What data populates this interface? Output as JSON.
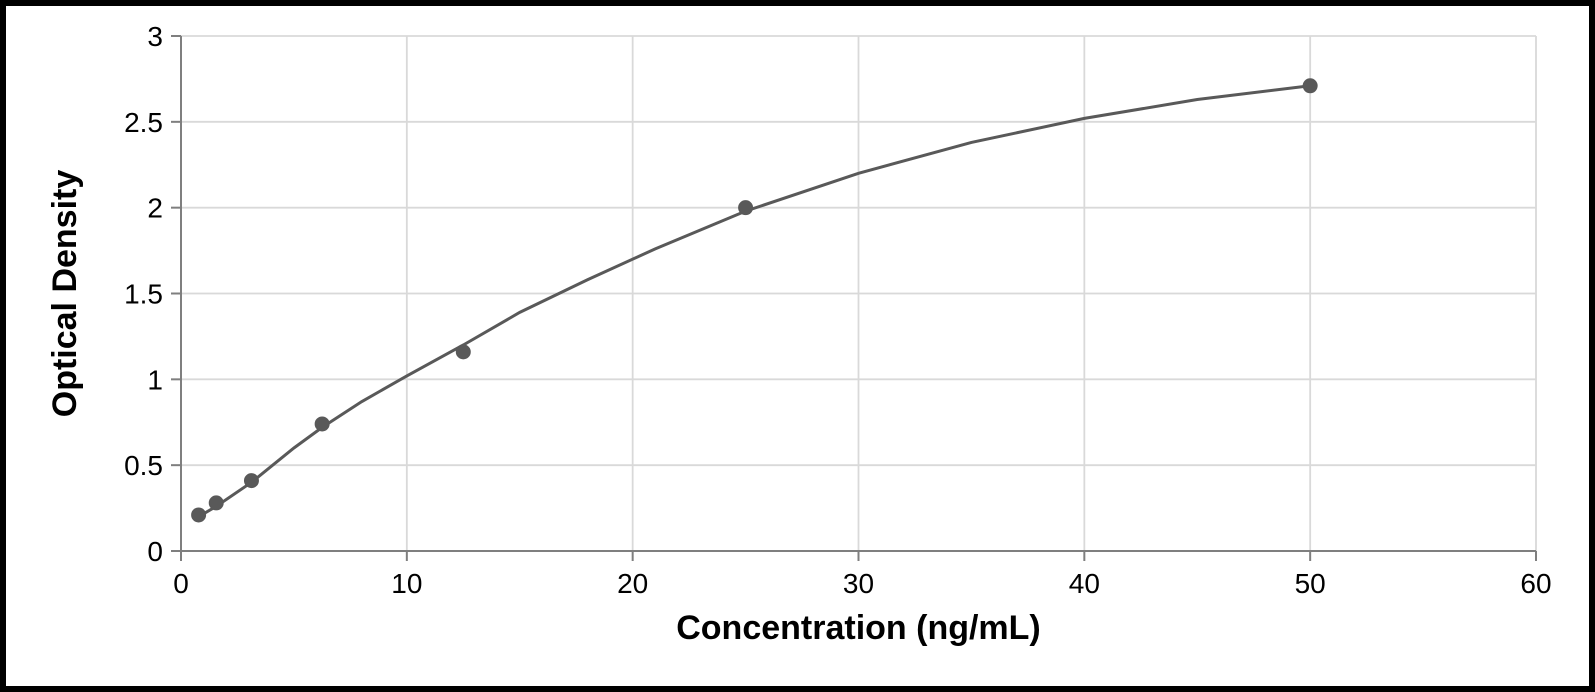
{
  "chart": {
    "type": "scatter-with-curve",
    "xlabel": "Concentration (ng/mL)",
    "ylabel": "Optical Density",
    "label_fontsize": 34,
    "tick_fontsize": 28,
    "xlim": [
      0,
      60
    ],
    "ylim": [
      0,
      3
    ],
    "xticks": [
      0,
      10,
      20,
      30,
      40,
      50,
      60
    ],
    "yticks": [
      0,
      0.5,
      1,
      1.5,
      2,
      2.5,
      3
    ],
    "ytick_labels": [
      "0",
      "0.5",
      "1",
      "1.5",
      "2",
      "2.5",
      "3"
    ],
    "xtick_labels": [
      "0",
      "10",
      "20",
      "30",
      "40",
      "50",
      "60"
    ],
    "background_color": "#ffffff",
    "grid_color": "#d9d9d9",
    "axis_color": "#7f7f7f",
    "line_color": "#595959",
    "marker_color": "#595959",
    "marker_radius": 7,
    "line_width": 3,
    "frame_border_color": "#000000",
    "frame_border_width": 6,
    "points": [
      {
        "x": 0.78,
        "y": 0.21
      },
      {
        "x": 1.56,
        "y": 0.28
      },
      {
        "x": 3.12,
        "y": 0.41
      },
      {
        "x": 6.25,
        "y": 0.74
      },
      {
        "x": 12.5,
        "y": 1.16
      },
      {
        "x": 25,
        "y": 2.0
      },
      {
        "x": 50,
        "y": 2.71
      }
    ],
    "curve": [
      {
        "x": 0.78,
        "y": 0.2
      },
      {
        "x": 1.56,
        "y": 0.26
      },
      {
        "x": 3.12,
        "y": 0.4
      },
      {
        "x": 5.0,
        "y": 0.6
      },
      {
        "x": 6.25,
        "y": 0.72
      },
      {
        "x": 8.0,
        "y": 0.87
      },
      {
        "x": 10.0,
        "y": 1.02
      },
      {
        "x": 12.5,
        "y": 1.2
      },
      {
        "x": 15.0,
        "y": 1.39
      },
      {
        "x": 18.0,
        "y": 1.58
      },
      {
        "x": 21.0,
        "y": 1.76
      },
      {
        "x": 25.0,
        "y": 1.98
      },
      {
        "x": 30.0,
        "y": 2.2
      },
      {
        "x": 35.0,
        "y": 2.38
      },
      {
        "x": 40.0,
        "y": 2.52
      },
      {
        "x": 45.0,
        "y": 2.63
      },
      {
        "x": 50.0,
        "y": 2.71
      }
    ]
  }
}
